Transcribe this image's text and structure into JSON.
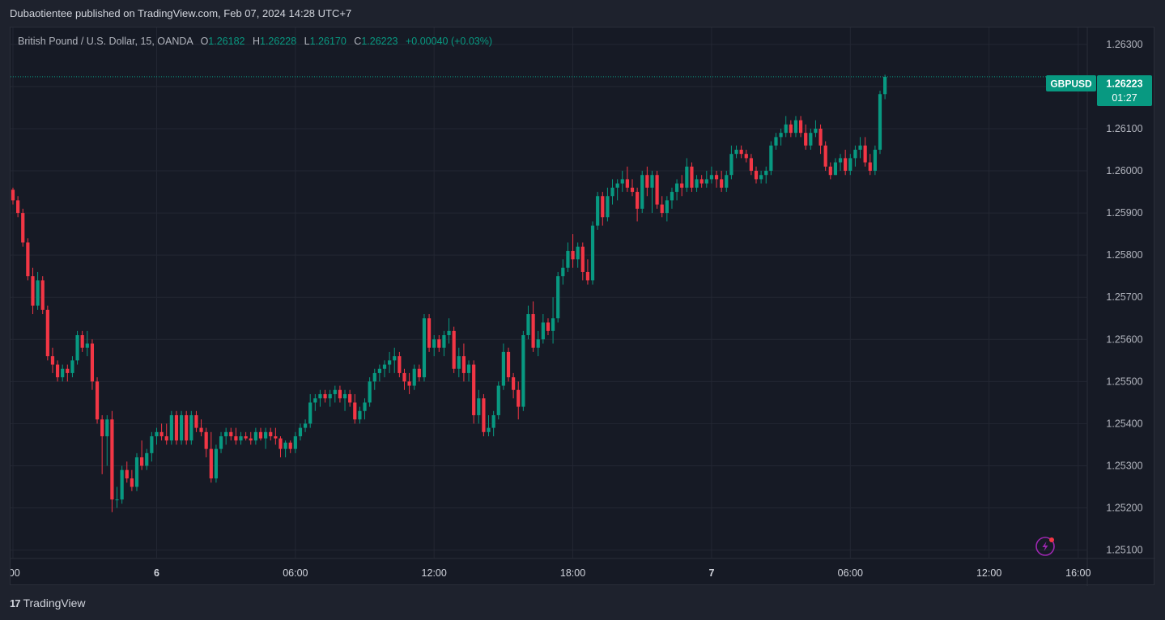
{
  "header": {
    "publish_line": "Dubaotientee published on TradingView.com, Feb 07, 2024 14:28 UTC+7"
  },
  "legend": {
    "symbol": "British Pound / U.S. Dollar, 15, OANDA",
    "o_label": "O",
    "o_value": "1.26182",
    "h_label": "H",
    "h_value": "1.26228",
    "l_label": "L",
    "l_value": "1.26170",
    "c_label": "C",
    "c_value": "1.26223",
    "change": "+0.00040 (+0.03%)"
  },
  "price_tag": {
    "symbol": "GBPUSD",
    "price": "1.26223",
    "countdown": "01:27"
  },
  "footer": {
    "brand": "TradingView",
    "brand_mark": "17"
  },
  "colors": {
    "up": "#089981",
    "down": "#f23645",
    "background": "#161a25",
    "grid": "#232733",
    "text": "#b2b5be"
  },
  "chart_data": {
    "type": "candlestick",
    "symbol": "GBPUSD",
    "interval": "15",
    "ylim": [
      1.2508,
      1.2634
    ],
    "y_ticks": [
      "1.26300",
      "1.26200",
      "1.26100",
      "1.26000",
      "1.25900",
      "1.25800",
      "1.25700",
      "1.25600",
      "1.25500",
      "1.25400",
      "1.25300",
      "1.25200",
      "1.25100"
    ],
    "x_ticks": [
      ":00",
      "6",
      "06:00",
      "12:00",
      "18:00",
      "7",
      "06:00",
      "12:00",
      "16:00"
    ],
    "x_tick_index": [
      0,
      29,
      57,
      85,
      113,
      141,
      169,
      197,
      215
    ],
    "last_price": 1.26223,
    "candles": [
      {
        "o": 1.25955,
        "h": 1.2596,
        "l": 1.2592,
        "c": 1.2593
      },
      {
        "o": 1.2593,
        "h": 1.2594,
        "l": 1.2589,
        "c": 1.259
      },
      {
        "o": 1.259,
        "h": 1.2591,
        "l": 1.2582,
        "c": 1.2583
      },
      {
        "o": 1.2583,
        "h": 1.2584,
        "l": 1.2574,
        "c": 1.2575
      },
      {
        "o": 1.2575,
        "h": 1.2577,
        "l": 1.2566,
        "c": 1.2568
      },
      {
        "o": 1.2568,
        "h": 1.2576,
        "l": 1.2567,
        "c": 1.2574
      },
      {
        "o": 1.2574,
        "h": 1.2575,
        "l": 1.2566,
        "c": 1.2567
      },
      {
        "o": 1.2567,
        "h": 1.2568,
        "l": 1.2555,
        "c": 1.2556
      },
      {
        "o": 1.2556,
        "h": 1.2558,
        "l": 1.2552,
        "c": 1.2554
      },
      {
        "o": 1.2554,
        "h": 1.2555,
        "l": 1.255,
        "c": 1.2551
      },
      {
        "o": 1.2551,
        "h": 1.2554,
        "l": 1.255,
        "c": 1.2553
      },
      {
        "o": 1.2553,
        "h": 1.2554,
        "l": 1.255,
        "c": 1.2552
      },
      {
        "o": 1.2552,
        "h": 1.2556,
        "l": 1.2551,
        "c": 1.2555
      },
      {
        "o": 1.2555,
        "h": 1.2562,
        "l": 1.2554,
        "c": 1.2561
      },
      {
        "o": 1.2561,
        "h": 1.2562,
        "l": 1.2557,
        "c": 1.2558
      },
      {
        "o": 1.2558,
        "h": 1.2562,
        "l": 1.2556,
        "c": 1.2559
      },
      {
        "o": 1.2559,
        "h": 1.256,
        "l": 1.2548,
        "c": 1.255
      },
      {
        "o": 1.255,
        "h": 1.2551,
        "l": 1.254,
        "c": 1.2541
      },
      {
        "o": 1.2541,
        "h": 1.2542,
        "l": 1.2528,
        "c": 1.2537
      },
      {
        "o": 1.2537,
        "h": 1.2542,
        "l": 1.253,
        "c": 1.2541
      },
      {
        "o": 1.2541,
        "h": 1.2543,
        "l": 1.2519,
        "c": 1.2522
      },
      {
        "o": 1.2522,
        "h": 1.2525,
        "l": 1.252,
        "c": 1.2522
      },
      {
        "o": 1.2522,
        "h": 1.253,
        "l": 1.2521,
        "c": 1.2529
      },
      {
        "o": 1.2529,
        "h": 1.2531,
        "l": 1.2526,
        "c": 1.2527
      },
      {
        "o": 1.2527,
        "h": 1.2529,
        "l": 1.2524,
        "c": 1.2525
      },
      {
        "o": 1.2525,
        "h": 1.2533,
        "l": 1.2524,
        "c": 1.2532
      },
      {
        "o": 1.2532,
        "h": 1.2536,
        "l": 1.2529,
        "c": 1.253
      },
      {
        "o": 1.253,
        "h": 1.2534,
        "l": 1.2529,
        "c": 1.2533
      },
      {
        "o": 1.2533,
        "h": 1.2538,
        "l": 1.2531,
        "c": 1.2537
      },
      {
        "o": 1.2537,
        "h": 1.2539,
        "l": 1.2535,
        "c": 1.2538
      },
      {
        "o": 1.2538,
        "h": 1.254,
        "l": 1.2536,
        "c": 1.2537
      },
      {
        "o": 1.2537,
        "h": 1.254,
        "l": 1.2535,
        "c": 1.2536
      },
      {
        "o": 1.2536,
        "h": 1.2543,
        "l": 1.2535,
        "c": 1.2542
      },
      {
        "o": 1.2542,
        "h": 1.2543,
        "l": 1.2535,
        "c": 1.2536
      },
      {
        "o": 1.2536,
        "h": 1.2543,
        "l": 1.2535,
        "c": 1.2542
      },
      {
        "o": 1.2542,
        "h": 1.2543,
        "l": 1.2535,
        "c": 1.2536
      },
      {
        "o": 1.2536,
        "h": 1.2543,
        "l": 1.2535,
        "c": 1.2542
      },
      {
        "o": 1.2542,
        "h": 1.2543,
        "l": 1.2538,
        "c": 1.2539
      },
      {
        "o": 1.2539,
        "h": 1.2541,
        "l": 1.2537,
        "c": 1.2538
      },
      {
        "o": 1.2538,
        "h": 1.2539,
        "l": 1.2532,
        "c": 1.2534
      },
      {
        "o": 1.2534,
        "h": 1.2538,
        "l": 1.2526,
        "c": 1.2527
      },
      {
        "o": 1.2527,
        "h": 1.2535,
        "l": 1.2526,
        "c": 1.2534
      },
      {
        "o": 1.2534,
        "h": 1.2538,
        "l": 1.2533,
        "c": 1.2537
      },
      {
        "o": 1.2537,
        "h": 1.2539,
        "l": 1.2535,
        "c": 1.2538
      },
      {
        "o": 1.2538,
        "h": 1.2539,
        "l": 1.2536,
        "c": 1.2537
      },
      {
        "o": 1.2537,
        "h": 1.2539,
        "l": 1.2535,
        "c": 1.2536
      },
      {
        "o": 1.2536,
        "h": 1.2538,
        "l": 1.2535,
        "c": 1.2537
      },
      {
        "o": 1.2537,
        "h": 1.2538,
        "l": 1.2536,
        "c": 1.25365
      },
      {
        "o": 1.25365,
        "h": 1.2538,
        "l": 1.2535,
        "c": 1.2536
      },
      {
        "o": 1.2536,
        "h": 1.2539,
        "l": 1.2535,
        "c": 1.2538
      },
      {
        "o": 1.2538,
        "h": 1.2539,
        "l": 1.2536,
        "c": 1.25365
      },
      {
        "o": 1.25365,
        "h": 1.2539,
        "l": 1.2534,
        "c": 1.2538
      },
      {
        "o": 1.2538,
        "h": 1.2539,
        "l": 1.2536,
        "c": 1.2537
      },
      {
        "o": 1.2537,
        "h": 1.2539,
        "l": 1.2535,
        "c": 1.25365
      },
      {
        "o": 1.25365,
        "h": 1.2537,
        "l": 1.2532,
        "c": 1.2534
      },
      {
        "o": 1.2534,
        "h": 1.2536,
        "l": 1.2532,
        "c": 1.25355
      },
      {
        "o": 1.25355,
        "h": 1.2536,
        "l": 1.2533,
        "c": 1.2534
      },
      {
        "o": 1.2534,
        "h": 1.2538,
        "l": 1.2533,
        "c": 1.2537
      },
      {
        "o": 1.2537,
        "h": 1.254,
        "l": 1.2536,
        "c": 1.2539
      },
      {
        "o": 1.2539,
        "h": 1.2541,
        "l": 1.2538,
        "c": 1.254
      },
      {
        "o": 1.254,
        "h": 1.2547,
        "l": 1.2539,
        "c": 1.2545
      },
      {
        "o": 1.2545,
        "h": 1.2547,
        "l": 1.2543,
        "c": 1.2546
      },
      {
        "o": 1.2546,
        "h": 1.2548,
        "l": 1.2544,
        "c": 1.2547
      },
      {
        "o": 1.2547,
        "h": 1.2548,
        "l": 1.2545,
        "c": 1.2546
      },
      {
        "o": 1.2546,
        "h": 1.2548,
        "l": 1.2544,
        "c": 1.2547
      },
      {
        "o": 1.2547,
        "h": 1.2549,
        "l": 1.2545,
        "c": 1.2548
      },
      {
        "o": 1.2548,
        "h": 1.2549,
        "l": 1.2545,
        "c": 1.2546
      },
      {
        "o": 1.2546,
        "h": 1.2548,
        "l": 1.2543,
        "c": 1.2547
      },
      {
        "o": 1.2547,
        "h": 1.2548,
        "l": 1.2544,
        "c": 1.2545
      },
      {
        "o": 1.2545,
        "h": 1.2547,
        "l": 1.254,
        "c": 1.2541
      },
      {
        "o": 1.2541,
        "h": 1.2544,
        "l": 1.254,
        "c": 1.2543
      },
      {
        "o": 1.2543,
        "h": 1.2546,
        "l": 1.2541,
        "c": 1.2545
      },
      {
        "o": 1.2545,
        "h": 1.2551,
        "l": 1.2544,
        "c": 1.255
      },
      {
        "o": 1.255,
        "h": 1.2553,
        "l": 1.2548,
        "c": 1.2552
      },
      {
        "o": 1.2552,
        "h": 1.2554,
        "l": 1.255,
        "c": 1.2553
      },
      {
        "o": 1.2553,
        "h": 1.2555,
        "l": 1.2551,
        "c": 1.2554
      },
      {
        "o": 1.2554,
        "h": 1.2557,
        "l": 1.2552,
        "c": 1.2555
      },
      {
        "o": 1.2555,
        "h": 1.2558,
        "l": 1.2552,
        "c": 1.2556
      },
      {
        "o": 1.2556,
        "h": 1.2557,
        "l": 1.2551,
        "c": 1.2552
      },
      {
        "o": 1.2552,
        "h": 1.2553,
        "l": 1.2548,
        "c": 1.255
      },
      {
        "o": 1.255,
        "h": 1.2552,
        "l": 1.2547,
        "c": 1.2549
      },
      {
        "o": 1.2549,
        "h": 1.2554,
        "l": 1.2548,
        "c": 1.2553
      },
      {
        "o": 1.2553,
        "h": 1.2554,
        "l": 1.255,
        "c": 1.2551
      },
      {
        "o": 1.2551,
        "h": 1.2566,
        "l": 1.255,
        "c": 1.2565
      },
      {
        "o": 1.2565,
        "h": 1.2566,
        "l": 1.2557,
        "c": 1.2558
      },
      {
        "o": 1.2558,
        "h": 1.2561,
        "l": 1.2556,
        "c": 1.256
      },
      {
        "o": 1.256,
        "h": 1.2561,
        "l": 1.2557,
        "c": 1.2558
      },
      {
        "o": 1.2558,
        "h": 1.2562,
        "l": 1.2556,
        "c": 1.2561
      },
      {
        "o": 1.2561,
        "h": 1.2565,
        "l": 1.2559,
        "c": 1.2562
      },
      {
        "o": 1.2562,
        "h": 1.2563,
        "l": 1.2552,
        "c": 1.2553
      },
      {
        "o": 1.2553,
        "h": 1.2558,
        "l": 1.2551,
        "c": 1.2556
      },
      {
        "o": 1.2556,
        "h": 1.2559,
        "l": 1.255,
        "c": 1.2552
      },
      {
        "o": 1.2552,
        "h": 1.2555,
        "l": 1.255,
        "c": 1.2554
      },
      {
        "o": 1.2554,
        "h": 1.2555,
        "l": 1.254,
        "c": 1.2542
      },
      {
        "o": 1.2542,
        "h": 1.2548,
        "l": 1.254,
        "c": 1.2546
      },
      {
        "o": 1.2546,
        "h": 1.2547,
        "l": 1.2537,
        "c": 1.2538
      },
      {
        "o": 1.2538,
        "h": 1.2542,
        "l": 1.2537,
        "c": 1.2539
      },
      {
        "o": 1.2539,
        "h": 1.2543,
        "l": 1.2537,
        "c": 1.2542
      },
      {
        "o": 1.2542,
        "h": 1.255,
        "l": 1.2541,
        "c": 1.2549
      },
      {
        "o": 1.2549,
        "h": 1.2559,
        "l": 1.2548,
        "c": 1.2557
      },
      {
        "o": 1.2557,
        "h": 1.2558,
        "l": 1.255,
        "c": 1.2551
      },
      {
        "o": 1.2551,
        "h": 1.2552,
        "l": 1.2546,
        "c": 1.2548
      },
      {
        "o": 1.2548,
        "h": 1.255,
        "l": 1.2541,
        "c": 1.2544
      },
      {
        "o": 1.2544,
        "h": 1.2562,
        "l": 1.2543,
        "c": 1.2561
      },
      {
        "o": 1.2561,
        "h": 1.2568,
        "l": 1.256,
        "c": 1.2566
      },
      {
        "o": 1.2566,
        "h": 1.2569,
        "l": 1.2557,
        "c": 1.2558
      },
      {
        "o": 1.2558,
        "h": 1.2562,
        "l": 1.2556,
        "c": 1.256
      },
      {
        "o": 1.256,
        "h": 1.2566,
        "l": 1.2559,
        "c": 1.2564
      },
      {
        "o": 1.2564,
        "h": 1.2565,
        "l": 1.2561,
        "c": 1.2562
      },
      {
        "o": 1.2562,
        "h": 1.257,
        "l": 1.2559,
        "c": 1.2565
      },
      {
        "o": 1.2565,
        "h": 1.2576,
        "l": 1.2564,
        "c": 1.2575
      },
      {
        "o": 1.2575,
        "h": 1.2579,
        "l": 1.2573,
        "c": 1.2577
      },
      {
        "o": 1.2577,
        "h": 1.2583,
        "l": 1.2576,
        "c": 1.2581
      },
      {
        "o": 1.2581,
        "h": 1.2585,
        "l": 1.2577,
        "c": 1.2579
      },
      {
        "o": 1.2579,
        "h": 1.2583,
        "l": 1.2577,
        "c": 1.2582
      },
      {
        "o": 1.2582,
        "h": 1.2583,
        "l": 1.2574,
        "c": 1.2576
      },
      {
        "o": 1.2576,
        "h": 1.2579,
        "l": 1.2573,
        "c": 1.2574
      },
      {
        "o": 1.2574,
        "h": 1.2588,
        "l": 1.2573,
        "c": 1.2587
      },
      {
        "o": 1.2587,
        "h": 1.2595,
        "l": 1.2586,
        "c": 1.2594
      },
      {
        "o": 1.2594,
        "h": 1.2595,
        "l": 1.2587,
        "c": 1.2589
      },
      {
        "o": 1.2589,
        "h": 1.2596,
        "l": 1.2588,
        "c": 1.2594
      },
      {
        "o": 1.2594,
        "h": 1.2598,
        "l": 1.2592,
        "c": 1.2596
      },
      {
        "o": 1.2596,
        "h": 1.2598,
        "l": 1.2593,
        "c": 1.2597
      },
      {
        "o": 1.2597,
        "h": 1.26,
        "l": 1.2595,
        "c": 1.2598
      },
      {
        "o": 1.2598,
        "h": 1.2601,
        "l": 1.2595,
        "c": 1.2596
      },
      {
        "o": 1.2596,
        "h": 1.2598,
        "l": 1.2594,
        "c": 1.2595
      },
      {
        "o": 1.2595,
        "h": 1.2596,
        "l": 1.2588,
        "c": 1.2591
      },
      {
        "o": 1.2591,
        "h": 1.26,
        "l": 1.259,
        "c": 1.2599
      },
      {
        "o": 1.2599,
        "h": 1.2601,
        "l": 1.2594,
        "c": 1.2596
      },
      {
        "o": 1.2596,
        "h": 1.26,
        "l": 1.259,
        "c": 1.2599
      },
      {
        "o": 1.2599,
        "h": 1.26,
        "l": 1.2591,
        "c": 1.2592
      },
      {
        "o": 1.2592,
        "h": 1.2594,
        "l": 1.2589,
        "c": 1.259
      },
      {
        "o": 1.259,
        "h": 1.2594,
        "l": 1.2588,
        "c": 1.2593
      },
      {
        "o": 1.2593,
        "h": 1.2596,
        "l": 1.2591,
        "c": 1.2595
      },
      {
        "o": 1.2595,
        "h": 1.2598,
        "l": 1.2593,
        "c": 1.2597
      },
      {
        "o": 1.2597,
        "h": 1.2599,
        "l": 1.2594,
        "c": 1.2596
      },
      {
        "o": 1.2596,
        "h": 1.2603,
        "l": 1.2595,
        "c": 1.2601
      },
      {
        "o": 1.2601,
        "h": 1.2602,
        "l": 1.2595,
        "c": 1.2596
      },
      {
        "o": 1.2596,
        "h": 1.2599,
        "l": 1.2595,
        "c": 1.2598
      },
      {
        "o": 1.2598,
        "h": 1.2599,
        "l": 1.2596,
        "c": 1.2597
      },
      {
        "o": 1.2597,
        "h": 1.26,
        "l": 1.2596,
        "c": 1.2598
      },
      {
        "o": 1.2598,
        "h": 1.2601,
        "l": 1.2597,
        "c": 1.2599
      },
      {
        "o": 1.2599,
        "h": 1.26,
        "l": 1.2596,
        "c": 1.2598
      },
      {
        "o": 1.2598,
        "h": 1.26,
        "l": 1.2595,
        "c": 1.2596
      },
      {
        "o": 1.2596,
        "h": 1.26,
        "l": 1.2595,
        "c": 1.2599
      },
      {
        "o": 1.2599,
        "h": 1.2606,
        "l": 1.2598,
        "c": 1.2604
      },
      {
        "o": 1.2604,
        "h": 1.2606,
        "l": 1.2603,
        "c": 1.2605
      },
      {
        "o": 1.2605,
        "h": 1.2606,
        "l": 1.2603,
        "c": 1.2604
      },
      {
        "o": 1.2604,
        "h": 1.2605,
        "l": 1.2602,
        "c": 1.2603
      },
      {
        "o": 1.2603,
        "h": 1.2604,
        "l": 1.2599,
        "c": 1.26
      },
      {
        "o": 1.26,
        "h": 1.2601,
        "l": 1.2597,
        "c": 1.2598
      },
      {
        "o": 1.2598,
        "h": 1.26,
        "l": 1.2597,
        "c": 1.2599
      },
      {
        "o": 1.2599,
        "h": 1.2601,
        "l": 1.2597,
        "c": 1.26
      },
      {
        "o": 1.26,
        "h": 1.2607,
        "l": 1.2599,
        "c": 1.2606
      },
      {
        "o": 1.2606,
        "h": 1.2609,
        "l": 1.2605,
        "c": 1.2608
      },
      {
        "o": 1.2608,
        "h": 1.261,
        "l": 1.2606,
        "c": 1.2609
      },
      {
        "o": 1.2609,
        "h": 1.2613,
        "l": 1.2608,
        "c": 1.2611
      },
      {
        "o": 1.2611,
        "h": 1.2612,
        "l": 1.2608,
        "c": 1.2609
      },
      {
        "o": 1.2609,
        "h": 1.2613,
        "l": 1.2608,
        "c": 1.2612
      },
      {
        "o": 1.2612,
        "h": 1.2613,
        "l": 1.2608,
        "c": 1.2609
      },
      {
        "o": 1.2609,
        "h": 1.2611,
        "l": 1.2605,
        "c": 1.2606
      },
      {
        "o": 1.2606,
        "h": 1.261,
        "l": 1.2605,
        "c": 1.2609
      },
      {
        "o": 1.2609,
        "h": 1.2612,
        "l": 1.2608,
        "c": 1.261
      },
      {
        "o": 1.261,
        "h": 1.2611,
        "l": 1.2604,
        "c": 1.2606
      },
      {
        "o": 1.2606,
        "h": 1.2607,
        "l": 1.26,
        "c": 1.2601
      },
      {
        "o": 1.2601,
        "h": 1.2602,
        "l": 1.2598,
        "c": 1.2599
      },
      {
        "o": 1.2599,
        "h": 1.2603,
        "l": 1.2599,
        "c": 1.2602
      },
      {
        "o": 1.2602,
        "h": 1.2604,
        "l": 1.26,
        "c": 1.2603
      },
      {
        "o": 1.2603,
        "h": 1.2605,
        "l": 1.2599,
        "c": 1.26
      },
      {
        "o": 1.26,
        "h": 1.2604,
        "l": 1.2599,
        "c": 1.2603
      },
      {
        "o": 1.2603,
        "h": 1.2606,
        "l": 1.2601,
        "c": 1.2605
      },
      {
        "o": 1.2605,
        "h": 1.2608,
        "l": 1.2603,
        "c": 1.2606
      },
      {
        "o": 1.2606,
        "h": 1.2608,
        "l": 1.2601,
        "c": 1.2602
      },
      {
        "o": 1.2602,
        "h": 1.2604,
        "l": 1.2599,
        "c": 1.26
      },
      {
        "o": 1.26,
        "h": 1.2606,
        "l": 1.2599,
        "c": 1.2605
      },
      {
        "o": 1.2605,
        "h": 1.2619,
        "l": 1.2604,
        "c": 1.26182
      },
      {
        "o": 1.26182,
        "h": 1.26228,
        "l": 1.2617,
        "c": 1.26223
      }
    ]
  }
}
